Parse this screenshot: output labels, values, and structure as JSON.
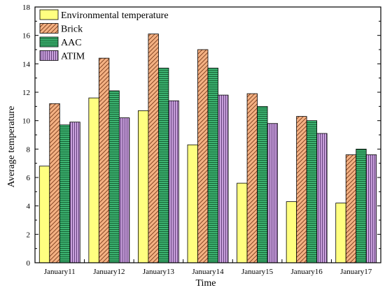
{
  "chart_data": {
    "type": "bar",
    "xlabel": "Time",
    "ylabel": "Average temperature",
    "ylim": [
      0,
      18
    ],
    "yticks": [
      0,
      2,
      4,
      6,
      8,
      10,
      12,
      14,
      16,
      18
    ],
    "grid": false,
    "legend_position": "top-left",
    "categories": [
      "January11",
      "January12",
      "January13",
      "January14",
      "January15",
      "January16",
      "January17"
    ],
    "series": [
      {
        "name": "Environmental temperature",
        "values": [
          6.8,
          11.6,
          10.7,
          8.3,
          5.6,
          4.3,
          4.2
        ],
        "color": "#ffff80",
        "pattern": "solid"
      },
      {
        "name": "Brick",
        "values": [
          11.2,
          14.4,
          16.1,
          15.0,
          11.9,
          10.3,
          7.6
        ],
        "color": "#f4b183",
        "pattern": "diagonal"
      },
      {
        "name": "AAC",
        "values": [
          9.7,
          12.1,
          13.7,
          13.7,
          11.0,
          10.0,
          8.0
        ],
        "color": "#3cb371",
        "pattern": "horizontal"
      },
      {
        "name": "ATIM",
        "values": [
          9.9,
          10.2,
          11.4,
          11.8,
          9.8,
          9.1,
          7.6
        ],
        "color": "#c9a0dc",
        "pattern": "vertical"
      }
    ]
  }
}
